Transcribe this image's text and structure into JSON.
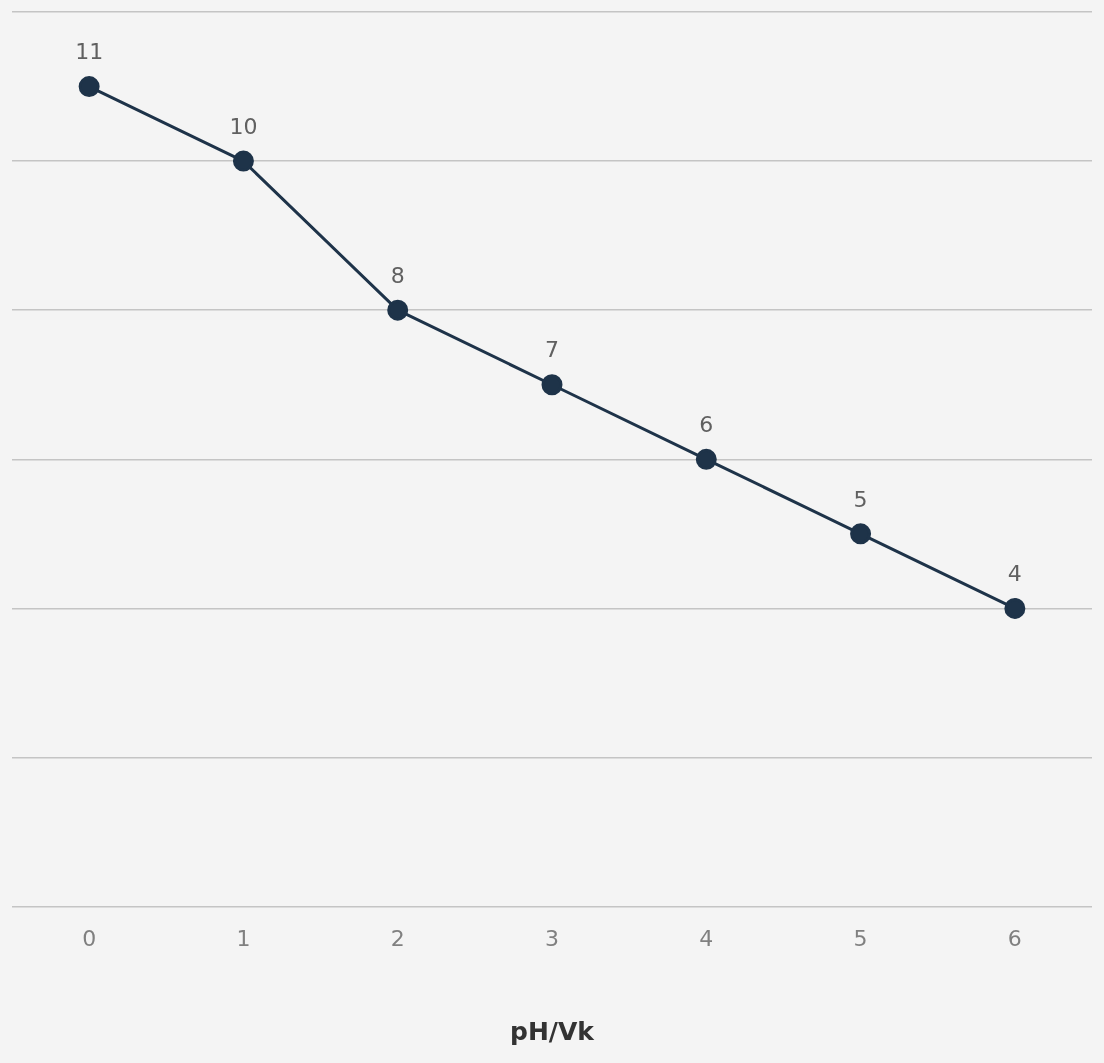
{
  "chart_data": {
    "type": "line",
    "xlabel": "pH/Vk",
    "categories": [
      "0",
      "1",
      "2",
      "3",
      "4",
      "5",
      "6"
    ],
    "series": [
      {
        "color": "#1e3349",
        "values": [
          11,
          10,
          8,
          7,
          6,
          5,
          4
        ]
      }
    ],
    "ylim": [
      0,
      12
    ],
    "yticks": [
      {
        "value": 0,
        "label": null
      },
      {
        "value": 2,
        "label": null
      },
      {
        "value": 4,
        "label": null
      },
      {
        "value": 6,
        "label": null
      },
      {
        "value": 8,
        "label": null
      },
      {
        "value": 10,
        "label": null
      },
      {
        "value": 12,
        "label": null
      }
    ],
    "grid": "y",
    "tick_labels": "x",
    "marker": "circle",
    "line_style": "solid",
    "data_labels": true,
    "legend": false
  }
}
